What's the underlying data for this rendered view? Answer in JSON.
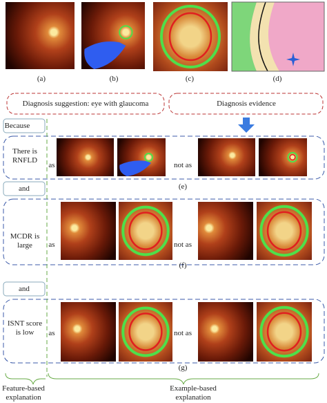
{
  "top_labels": [
    "(a)",
    "(b)",
    "(c)",
    "(d)"
  ],
  "suggestion": "Diagnosis suggestion: eye with glaucoma",
  "evidence": "Diagnosis evidence",
  "because": "Because",
  "rows": [
    {
      "feature": "There is RNFLD",
      "as": "as",
      "not_as": "not as",
      "label": "(e)"
    },
    {
      "feature": "MCDR is large",
      "as": "as",
      "not_as": "not as",
      "label": "(f)"
    },
    {
      "feature": "ISNT score is low",
      "as": "as",
      "not_as": "not as",
      "label": "(g)"
    }
  ],
  "connectors": [
    "and",
    "and"
  ],
  "footer": {
    "feature_based": "Feature-based explanation",
    "example_based": "Example-based explanation"
  }
}
